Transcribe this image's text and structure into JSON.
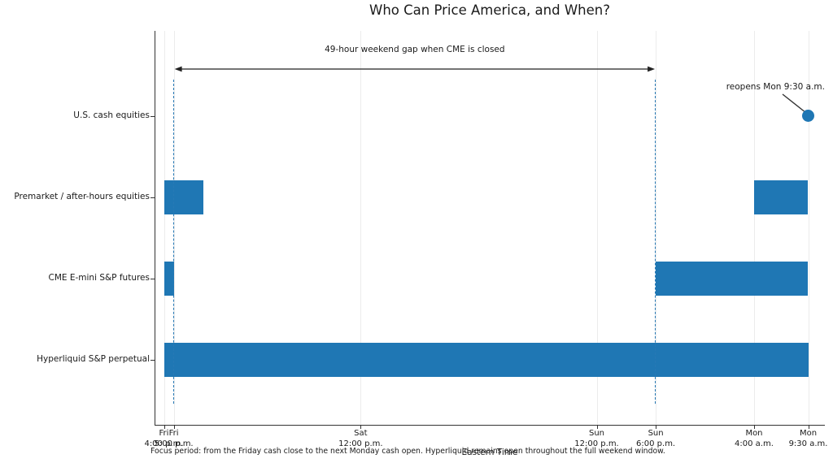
{
  "chart_data": {
    "type": "bar",
    "variant": "horizontal time-interval (gantt) chart",
    "title": "Who Can Price America, and When?",
    "xlabel": "Eastern Time",
    "caption": "Focus period: from the Friday cash close to the next Monday cash open. Hyperliquid remains open throughout the full weekend window.",
    "x_unit": "hours after Fri 4:00 p.m. Eastern Time",
    "x_range_hours": [
      0,
      65.5
    ],
    "grid": "vertical gridlines at each x tick",
    "x_ticks": [
      {
        "hour": 0,
        "line1": "Fri",
        "line2": "4:00 p.m."
      },
      {
        "hour": 1,
        "line1": "Fri",
        "line2": "5:00 p.m."
      },
      {
        "hour": 20,
        "line1": "Sat",
        "line2": "12:00 p.m."
      },
      {
        "hour": 44,
        "line1": "Sun",
        "line2": "12:00 p.m."
      },
      {
        "hour": 50,
        "line1": "Sun",
        "line2": "6:00 p.m."
      },
      {
        "hour": 60,
        "line1": "Mon",
        "line2": "4:00 a.m."
      },
      {
        "hour": 65.5,
        "line1": "Mon",
        "line2": "9:30 a.m."
      }
    ],
    "rows": [
      {
        "label": "U.S. cash equities",
        "segments": [],
        "marker": {
          "hour": 65.5,
          "meaning": "reopens Mon 9:30 a.m."
        }
      },
      {
        "label": "Premarket / after-hours equities",
        "segments": [
          {
            "start_hour": 0,
            "end_hour": 4,
            "start": "Fri 4:00 p.m.",
            "end": "Fri 8:00 p.m."
          },
          {
            "start_hour": 60,
            "end_hour": 65.5,
            "start": "Mon 4:00 a.m.",
            "end": "Mon 9:30 a.m."
          }
        ]
      },
      {
        "label": "CME E-mini S&P futures",
        "segments": [
          {
            "start_hour": 0,
            "end_hour": 1,
            "start": "Fri 4:00 p.m.",
            "end": "Fri 5:00 p.m."
          },
          {
            "start_hour": 50,
            "end_hour": 65.5,
            "start": "Sun 6:00 p.m.",
            "end": "Mon 9:30 a.m."
          }
        ]
      },
      {
        "label": "Hyperliquid S&P perpetual",
        "segments": [
          {
            "start_hour": 0,
            "end_hour": 65.5,
            "start": "Fri 4:00 p.m.",
            "end": "Mon 9:30 a.m."
          }
        ]
      }
    ],
    "dashed_lines_hours": [
      1,
      50
    ],
    "gap_annotation": {
      "text": "49-hour weekend gap when CME is closed",
      "from_hour": 1,
      "to_hour": 50
    },
    "reopen_annotation": {
      "text": "reopens Mon 9:30 a.m.",
      "marker_hour": 65.5,
      "marker_row": 0
    },
    "colors": {
      "bar": "#1f77b4",
      "dashed": "#2779b5",
      "marker": "#1f77b4",
      "arrow": "#222222",
      "grid": "#ececec",
      "spine": "#333333",
      "text": "#1a1a1a"
    }
  }
}
